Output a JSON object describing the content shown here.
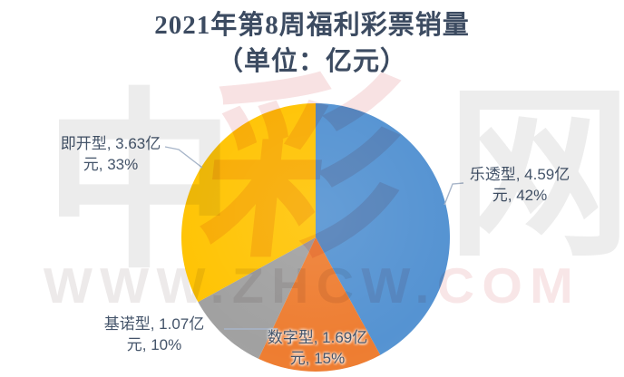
{
  "title": {
    "line1": "2021年第8周福利彩票销量",
    "line2": "（单位：亿元）"
  },
  "watermark": {
    "glyphs": [
      "中",
      "彩",
      "网"
    ],
    "site_left": "WWW.ZHC",
    "site_right": "W.COM",
    "site_text": "WWW.ZHCW.COM"
  },
  "colors": {
    "title_text": "#3C4B61",
    "label_text": "#44546A",
    "leader_line": "#A7B5C9",
    "watermark_gray": "#ECECEC",
    "watermark_pink": "#F8E2E3",
    "background": "#FFFFFF"
  },
  "chart_data": {
    "type": "pie",
    "title": "2021年第8周福利彩票销量（单位：亿元）",
    "unit": "亿元",
    "start_angle_deg": 0,
    "direction": "clockwise",
    "legend": "none",
    "slices": [
      {
        "name": "乐透型",
        "value": 4.59,
        "percent": 42,
        "color": "#5593D2",
        "label_lines": [
          "乐透型, 4.59亿",
          "元, 42%"
        ]
      },
      {
        "name": "数字型",
        "value": 1.69,
        "percent": 15,
        "color": "#EE7D31",
        "label_lines": [
          "数字型, 1.69亿",
          "元, 15%"
        ]
      },
      {
        "name": "基诺型",
        "value": 1.07,
        "percent": 10,
        "color": "#A1A1A1",
        "label_lines": [
          "基诺型, 1.07亿",
          "元, 10%"
        ]
      },
      {
        "name": "即开型",
        "value": 3.63,
        "percent": 33,
        "color": "#FFC405",
        "label_lines": [
          "即开型, 3.63亿",
          "元, 33%"
        ]
      }
    ]
  }
}
